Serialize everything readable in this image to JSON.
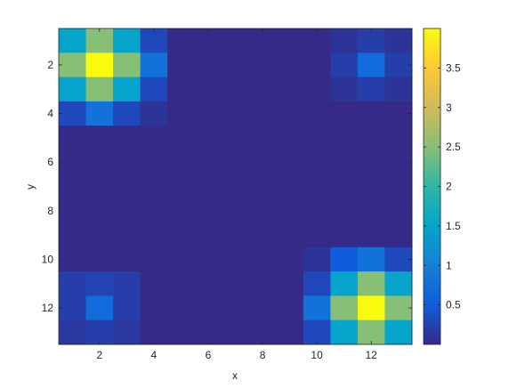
{
  "chart_data": {
    "type": "heatmap",
    "title": "",
    "xlabel": "x",
    "ylabel": "y",
    "x_ticks": [
      2,
      4,
      6,
      8,
      10,
      12
    ],
    "y_ticks": [
      2,
      4,
      6,
      8,
      10,
      12
    ],
    "x_range": [
      0.5,
      13.5
    ],
    "y_range": [
      0.5,
      13.5
    ],
    "y_direction": "reversed",
    "grid": false,
    "colormap": "parula",
    "colorbar": {
      "range": [
        0,
        4
      ],
      "ticks": [
        0.5,
        1,
        1.5,
        2,
        2.5,
        3,
        3.5
      ],
      "tick_labels": [
        "0.5",
        "1",
        "1.5",
        "2",
        "2.5",
        "3",
        "3.5"
      ],
      "placement": "right"
    },
    "values": [
      [
        1.5,
        2.5,
        1.5,
        0.3,
        0,
        0,
        0,
        0,
        0,
        0,
        0.1,
        0.2,
        0.1
      ],
      [
        2.5,
        4,
        2.5,
        0.8,
        0,
        0,
        0,
        0,
        0,
        0,
        0.2,
        0.7,
        0.2
      ],
      [
        1.5,
        2.5,
        1.5,
        0.3,
        0,
        0,
        0,
        0,
        0,
        0,
        0.1,
        0.2,
        0.1
      ],
      [
        0.3,
        0.8,
        0.3,
        0.1,
        0,
        0,
        0,
        0,
        0,
        0,
        0,
        0,
        0
      ],
      [
        0,
        0,
        0,
        0,
        0,
        0,
        0,
        0,
        0,
        0,
        0,
        0,
        0
      ],
      [
        0,
        0,
        0,
        0,
        0,
        0,
        0,
        0,
        0,
        0,
        0,
        0,
        0
      ],
      [
        0,
        0,
        0,
        0,
        0,
        0,
        0,
        0,
        0,
        0,
        0,
        0,
        0
      ],
      [
        0,
        0,
        0,
        0,
        0,
        0,
        0,
        0,
        0,
        0,
        0,
        0,
        0
      ],
      [
        0,
        0,
        0,
        0,
        0,
        0,
        0,
        0,
        0,
        0,
        0,
        0,
        0
      ],
      [
        0,
        0,
        0,
        0,
        0,
        0,
        0,
        0,
        0,
        0.1,
        0.5,
        0.8,
        0.3
      ],
      [
        0.2,
        0.25,
        0.2,
        0,
        0,
        0,
        0,
        0,
        0,
        0.3,
        1.5,
        2.5,
        1.5
      ],
      [
        0.2,
        0.7,
        0.2,
        0,
        0,
        0,
        0,
        0,
        0,
        0.8,
        2.5,
        4,
        2.5
      ],
      [
        0.15,
        0.2,
        0.15,
        0,
        0,
        0,
        0,
        0,
        0,
        0.3,
        1.5,
        2.5,
        1.5
      ]
    ]
  }
}
